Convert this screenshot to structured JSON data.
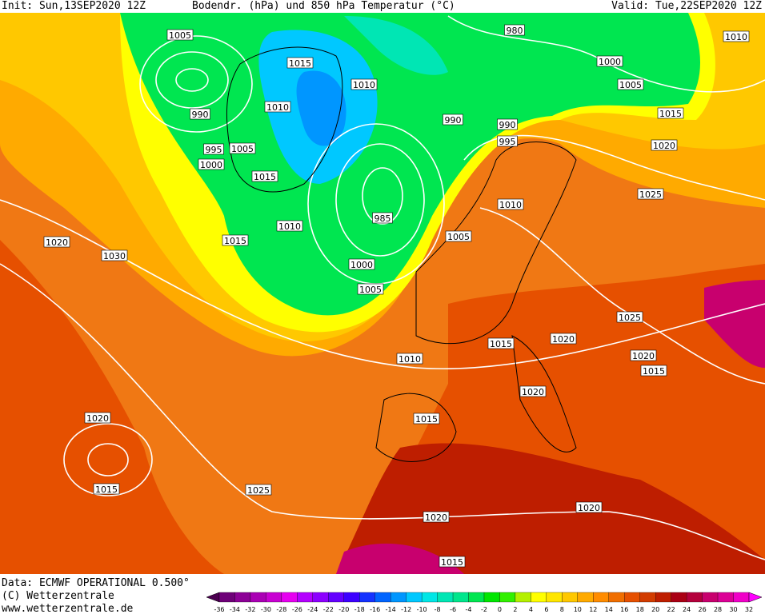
{
  "header": {
    "init": "Init: Sun,13SEP2020 12Z",
    "title": "Bodendr. (hPa) und 850 hPa Temperatur (°C)",
    "valid": "Valid: Tue,22SEP2020 12Z"
  },
  "isobar_labels": [
    "1005",
    "1015",
    "1010",
    "1010",
    "990",
    "995",
    "1005",
    "1000",
    "1015",
    "1010",
    "1015",
    "1000",
    "1005",
    "985",
    "1010",
    "1015",
    "990",
    "990",
    "995",
    "980",
    "1000",
    "1005",
    "1015",
    "1020",
    "1010",
    "1025",
    "1010",
    "1005",
    "1025",
    "1020",
    "1015",
    "1020",
    "1015",
    "1020",
    "1020",
    "1015",
    "1025",
    "1020",
    "1020",
    "1015",
    "1020",
    "1030"
  ],
  "footer": {
    "data": "Data: ECMWF OPERATIONAL 0.500°",
    "copyright": "(C) Wetterzentrale",
    "url": "www.wetterzentrale.de"
  },
  "colorbar": {
    "ticks": [
      -36,
      -34,
      -32,
      -30,
      -28,
      -26,
      -24,
      -22,
      -20,
      -18,
      -16,
      -14,
      -12,
      -10,
      -8,
      -6,
      -4,
      -2,
      0,
      2,
      4,
      6,
      8,
      10,
      12,
      14,
      16,
      18,
      20,
      22,
      24,
      26,
      28,
      30,
      32
    ],
    "colors": [
      "#4b0050",
      "#6e0078",
      "#8c0096",
      "#aa00b4",
      "#c800d2",
      "#e600f0",
      "#b400ff",
      "#8c00ff",
      "#6400ff",
      "#3c00ff",
      "#1432ff",
      "#0064ff",
      "#0096ff",
      "#00c8ff",
      "#00e6e6",
      "#00e6b4",
      "#00e68c",
      "#00e650",
      "#00e600",
      "#32f000",
      "#b4f000",
      "#ffff00",
      "#ffe600",
      "#ffc800",
      "#ffaa00",
      "#ff8c00",
      "#f06e00",
      "#e65000",
      "#d23c00",
      "#be1e00",
      "#aa0014",
      "#b4003c",
      "#c8006e",
      "#dc0096",
      "#f000c8",
      "#ff00ff"
    ]
  }
}
